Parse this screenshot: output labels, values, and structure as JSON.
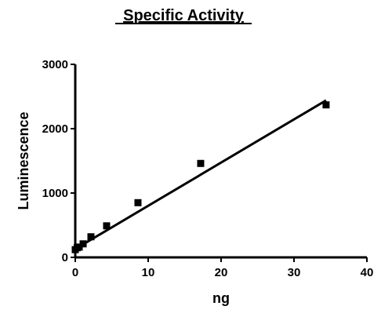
{
  "chart_data": {
    "type": "scatter",
    "title": "Specific Activity",
    "xlabel": "ng",
    "ylabel": "Luminescence",
    "xlim": [
      0,
      40
    ],
    "ylim": [
      0,
      3000
    ],
    "x_ticks": [
      "0",
      "10",
      "20",
      "30",
      "40"
    ],
    "y_ticks": [
      "0",
      "1000",
      "2000",
      "3000"
    ],
    "grid": false,
    "legend": "none",
    "series": [
      {
        "points": [
          {
            "x": 0,
            "y": 120
          },
          {
            "x": 0.27,
            "y": 150
          },
          {
            "x": 0.54,
            "y": 160
          },
          {
            "x": 1.08,
            "y": 210
          },
          {
            "x": 2.15,
            "y": 320
          },
          {
            "x": 4.3,
            "y": 490
          },
          {
            "x": 8.6,
            "y": 850
          },
          {
            "x": 17.2,
            "y": 1460
          },
          {
            "x": 34.4,
            "y": 2370
          }
        ]
      }
    ],
    "fit_line": {
      "x": [
        0,
        34.4
      ],
      "y": [
        130,
        2440
      ]
    },
    "colors": {
      "marks": "#000000",
      "background": "#ffffff"
    }
  }
}
